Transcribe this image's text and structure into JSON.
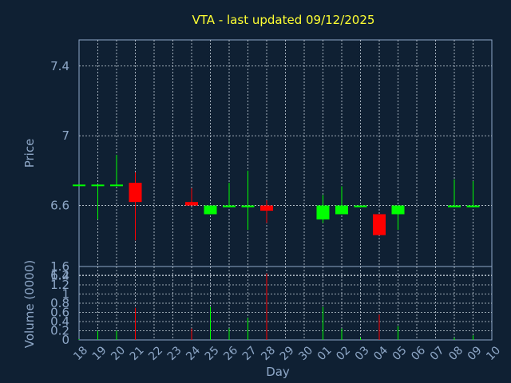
{
  "chart_data": {
    "type": "candlestick",
    "title": "VTA - last updated 09/12/2025",
    "price_panel": {
      "ylabel": "Price",
      "ylim": [
        6.25,
        7.55
      ],
      "yticks": [
        "7.4",
        "7",
        "6.6",
        "6.2"
      ],
      "ytick_values": [
        7.4,
        7.0,
        6.6,
        6.2
      ]
    },
    "volume_panel": {
      "ylabel": "Volume (0000)",
      "ylim": [
        0,
        1.6
      ],
      "yticks": [
        "1.6",
        "1.4",
        "1.2",
        "1",
        "0.8",
        "0.6",
        "0.4",
        "0.2",
        "0"
      ],
      "ytick_values": [
        1.6,
        1.4,
        1.2,
        1.0,
        0.8,
        0.6,
        0.4,
        0.2,
        0.0
      ]
    },
    "xlabel": "Day",
    "x_ticks": [
      "18",
      "19",
      "20",
      "21",
      "22",
      "23",
      "24",
      "25",
      "26",
      "27",
      "28",
      "29",
      "30",
      "01",
      "02",
      "03",
      "04",
      "05",
      "06",
      "07",
      "08",
      "09",
      "10"
    ],
    "candles": [
      {
        "day": "18",
        "open": 6.72,
        "high": 6.72,
        "low": 6.72,
        "close": 6.72,
        "volume": 0.02
      },
      {
        "day": "19",
        "open": 6.72,
        "high": 6.72,
        "low": 6.52,
        "close": 6.72,
        "volume": 0.2
      },
      {
        "day": "20",
        "open": 6.72,
        "high": 6.89,
        "low": 6.72,
        "close": 6.72,
        "volume": 0.2
      },
      {
        "day": "21",
        "open": 6.73,
        "high": 6.79,
        "low": 6.4,
        "close": 6.62,
        "volume": 0.7
      },
      {
        "day": "24",
        "open": 6.62,
        "high": 6.7,
        "low": 6.6,
        "close": 6.6,
        "volume": 0.25
      },
      {
        "day": "25",
        "open": 6.55,
        "high": 6.6,
        "low": 6.55,
        "close": 6.6,
        "volume": 0.72
      },
      {
        "day": "26",
        "open": 6.59,
        "high": 6.73,
        "low": 6.59,
        "close": 6.6,
        "volume": 0.25
      },
      {
        "day": "27",
        "open": 6.59,
        "high": 6.8,
        "low": 6.46,
        "close": 6.6,
        "volume": 0.48
      },
      {
        "day": "28",
        "open": 6.6,
        "high": 6.63,
        "low": 6.5,
        "close": 6.57,
        "volume": 1.45
      },
      {
        "day": "01",
        "open": 6.52,
        "high": 6.66,
        "low": 6.5,
        "close": 6.6,
        "volume": 0.72
      },
      {
        "day": "02",
        "open": 6.55,
        "high": 6.71,
        "low": 6.55,
        "close": 6.6,
        "volume": 0.25
      },
      {
        "day": "03",
        "open": 6.59,
        "high": 6.6,
        "low": 6.59,
        "close": 6.6,
        "volume": 0.05
      },
      {
        "day": "04",
        "open": 6.55,
        "high": 6.55,
        "low": 6.43,
        "close": 6.43,
        "volume": 0.55
      },
      {
        "day": "05",
        "open": 6.55,
        "high": 6.6,
        "low": 6.46,
        "close": 6.6,
        "volume": 0.3
      },
      {
        "day": "08",
        "open": 6.59,
        "high": 6.75,
        "low": 6.59,
        "close": 6.6,
        "volume": 0.05
      },
      {
        "day": "09",
        "open": 6.59,
        "high": 6.74,
        "low": 6.59,
        "close": 6.6,
        "volume": 0.1
      }
    ],
    "colors": {
      "up": "#00ff00",
      "down": "#ff0000",
      "background": "#0f2033",
      "grid": "#c8d2dc",
      "text": "#8fa8c8",
      "title": "#ffff33"
    }
  }
}
